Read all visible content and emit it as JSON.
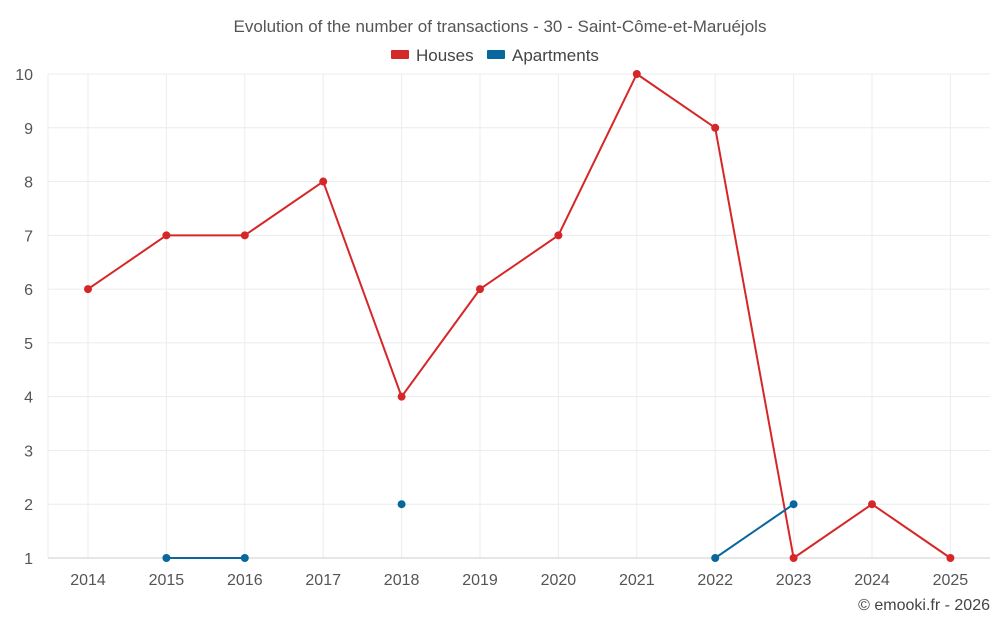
{
  "chart_data": {
    "type": "line",
    "title": "Evolution of the number of transactions - 30 - Saint-Côme-et-Maruéjols",
    "categories": [
      "2014",
      "2015",
      "2016",
      "2017",
      "2018",
      "2019",
      "2020",
      "2021",
      "2022",
      "2023",
      "2024",
      "2025"
    ],
    "y_ticks": [
      "1",
      "2",
      "3",
      "4",
      "5",
      "6",
      "7",
      "8",
      "9",
      "10"
    ],
    "ylim": [
      1,
      10
    ],
    "legend_position": "top-center",
    "grid": true,
    "series": [
      {
        "name": "Houses",
        "color": "#d62728",
        "values": [
          6,
          7,
          7,
          8,
          4,
          6,
          7,
          10,
          9,
          1,
          2,
          1
        ]
      },
      {
        "name": "Apartments",
        "color": "#08679c",
        "values": [
          null,
          1,
          1,
          null,
          2,
          null,
          null,
          null,
          1,
          2,
          null,
          null
        ]
      }
    ]
  },
  "credit": "© emooki.fr - 2026"
}
